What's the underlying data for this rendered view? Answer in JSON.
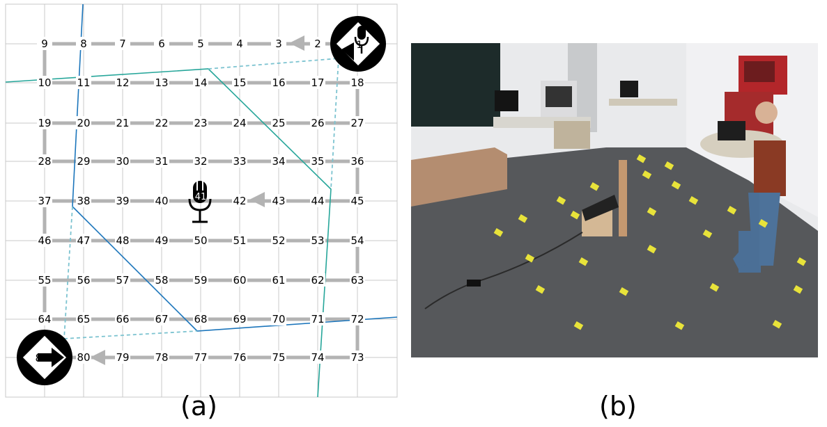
{
  "panel_a": {
    "caption": "(a)",
    "grid_rows": [
      [
        "9",
        "8",
        "7",
        "6",
        "5",
        "4",
        "3",
        "2",
        "1"
      ],
      [
        "10",
        "11",
        "12",
        "13",
        "14",
        "15",
        "16",
        "17",
        "18"
      ],
      [
        "19",
        "20",
        "21",
        "22",
        "23",
        "24",
        "25",
        "26",
        "27"
      ],
      [
        "28",
        "29",
        "30",
        "31",
        "32",
        "33",
        "34",
        "35",
        "36"
      ],
      [
        "37",
        "38",
        "39",
        "40",
        "41",
        "42",
        "43",
        "44",
        "45"
      ],
      [
        "46",
        "47",
        "48",
        "49",
        "50",
        "51",
        "52",
        "53",
        "54"
      ],
      [
        "55",
        "56",
        "57",
        "58",
        "59",
        "60",
        "61",
        "62",
        "63"
      ],
      [
        "64",
        "65",
        "66",
        "67",
        "68",
        "69",
        "70",
        "71",
        "72"
      ],
      [
        "81",
        "80",
        "79",
        "78",
        "77",
        "76",
        "75",
        "74",
        "73"
      ]
    ],
    "icons": {
      "microphone": "microphone-icon",
      "direction_sign": "direction-sign-icon",
      "arrow": "left-arrow-icon"
    },
    "colors": {
      "path": "#b3b3b3",
      "arrow": "#b3b3b3",
      "blue_line": "#1b75bb",
      "teal_line": "#26a69a",
      "dashed_line": "#7cc3d0",
      "grid": "#c8c8c8"
    }
  },
  "panel_b": {
    "caption": "(b)",
    "colors": {
      "floor": "#56585b",
      "wall": "#e9eaec",
      "marker": "#e8e33a"
    }
  }
}
